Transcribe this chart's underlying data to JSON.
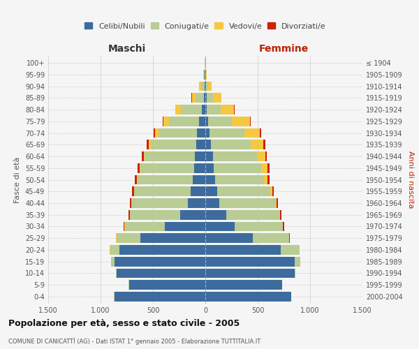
{
  "age_groups": [
    "0-4",
    "5-9",
    "10-14",
    "15-19",
    "20-24",
    "25-29",
    "30-34",
    "35-39",
    "40-44",
    "45-49",
    "50-54",
    "55-59",
    "60-64",
    "65-69",
    "70-74",
    "75-79",
    "80-84",
    "85-89",
    "90-94",
    "95-99",
    "100+"
  ],
  "birth_years": [
    "2000-2004",
    "1995-1999",
    "1990-1994",
    "1985-1989",
    "1980-1984",
    "1975-1979",
    "1970-1974",
    "1965-1969",
    "1960-1964",
    "1955-1959",
    "1950-1954",
    "1945-1949",
    "1940-1944",
    "1935-1939",
    "1930-1934",
    "1925-1929",
    "1920-1924",
    "1915-1919",
    "1910-1914",
    "1905-1909",
    "≤ 1904"
  ],
  "male": {
    "celibi": [
      870,
      730,
      850,
      870,
      820,
      620,
      390,
      240,
      165,
      140,
      120,
      110,
      100,
      90,
      80,
      60,
      35,
      15,
      8,
      4,
      2
    ],
    "coniugati": [
      2,
      2,
      5,
      30,
      90,
      230,
      380,
      480,
      540,
      540,
      530,
      510,
      480,
      430,
      370,
      290,
      200,
      80,
      30,
      8,
      2
    ],
    "vedovi": [
      0,
      0,
      0,
      0,
      1,
      1,
      1,
      2,
      2,
      3,
      4,
      5,
      10,
      20,
      30,
      50,
      50,
      30,
      20,
      5,
      1
    ],
    "divorziati": [
      0,
      0,
      0,
      1,
      2,
      5,
      8,
      10,
      12,
      15,
      18,
      20,
      20,
      18,
      15,
      10,
      5,
      8,
      2,
      0,
      0
    ]
  },
  "female": {
    "nubili": [
      820,
      730,
      850,
      850,
      720,
      450,
      280,
      200,
      130,
      110,
      90,
      80,
      70,
      55,
      40,
      25,
      15,
      10,
      5,
      3,
      2
    ],
    "coniugate": [
      2,
      3,
      10,
      55,
      180,
      350,
      460,
      510,
      540,
      510,
      470,
      450,
      420,
      380,
      330,
      230,
      130,
      60,
      20,
      5,
      2
    ],
    "vedove": [
      0,
      0,
      0,
      0,
      1,
      2,
      3,
      5,
      10,
      20,
      35,
      60,
      80,
      120,
      150,
      170,
      130,
      80,
      35,
      8,
      1
    ],
    "divorziate": [
      0,
      0,
      0,
      1,
      2,
      3,
      8,
      10,
      12,
      15,
      18,
      20,
      18,
      15,
      15,
      8,
      5,
      5,
      2,
      0,
      0
    ]
  },
  "colors": {
    "celibi": "#3d6b9e",
    "coniugati": "#b8cc94",
    "vedovi": "#f5c842",
    "divorziati": "#cc2200"
  },
  "xlim": 1500,
  "title": "Popolazione per età, sesso e stato civile - 2005",
  "subtitle": "COMUNE DI CANICATTÌ (AG) - Dati ISTAT 1° gennaio 2005 - Elaborazione TUTTITALIA.IT",
  "ylabel_left": "Fasce di età",
  "ylabel_right": "Anni di nascita",
  "xlabel_left": "Maschi",
  "xlabel_right": "Femmine",
  "bg_color": "#f5f5f5",
  "grid_color": "#cccccc"
}
